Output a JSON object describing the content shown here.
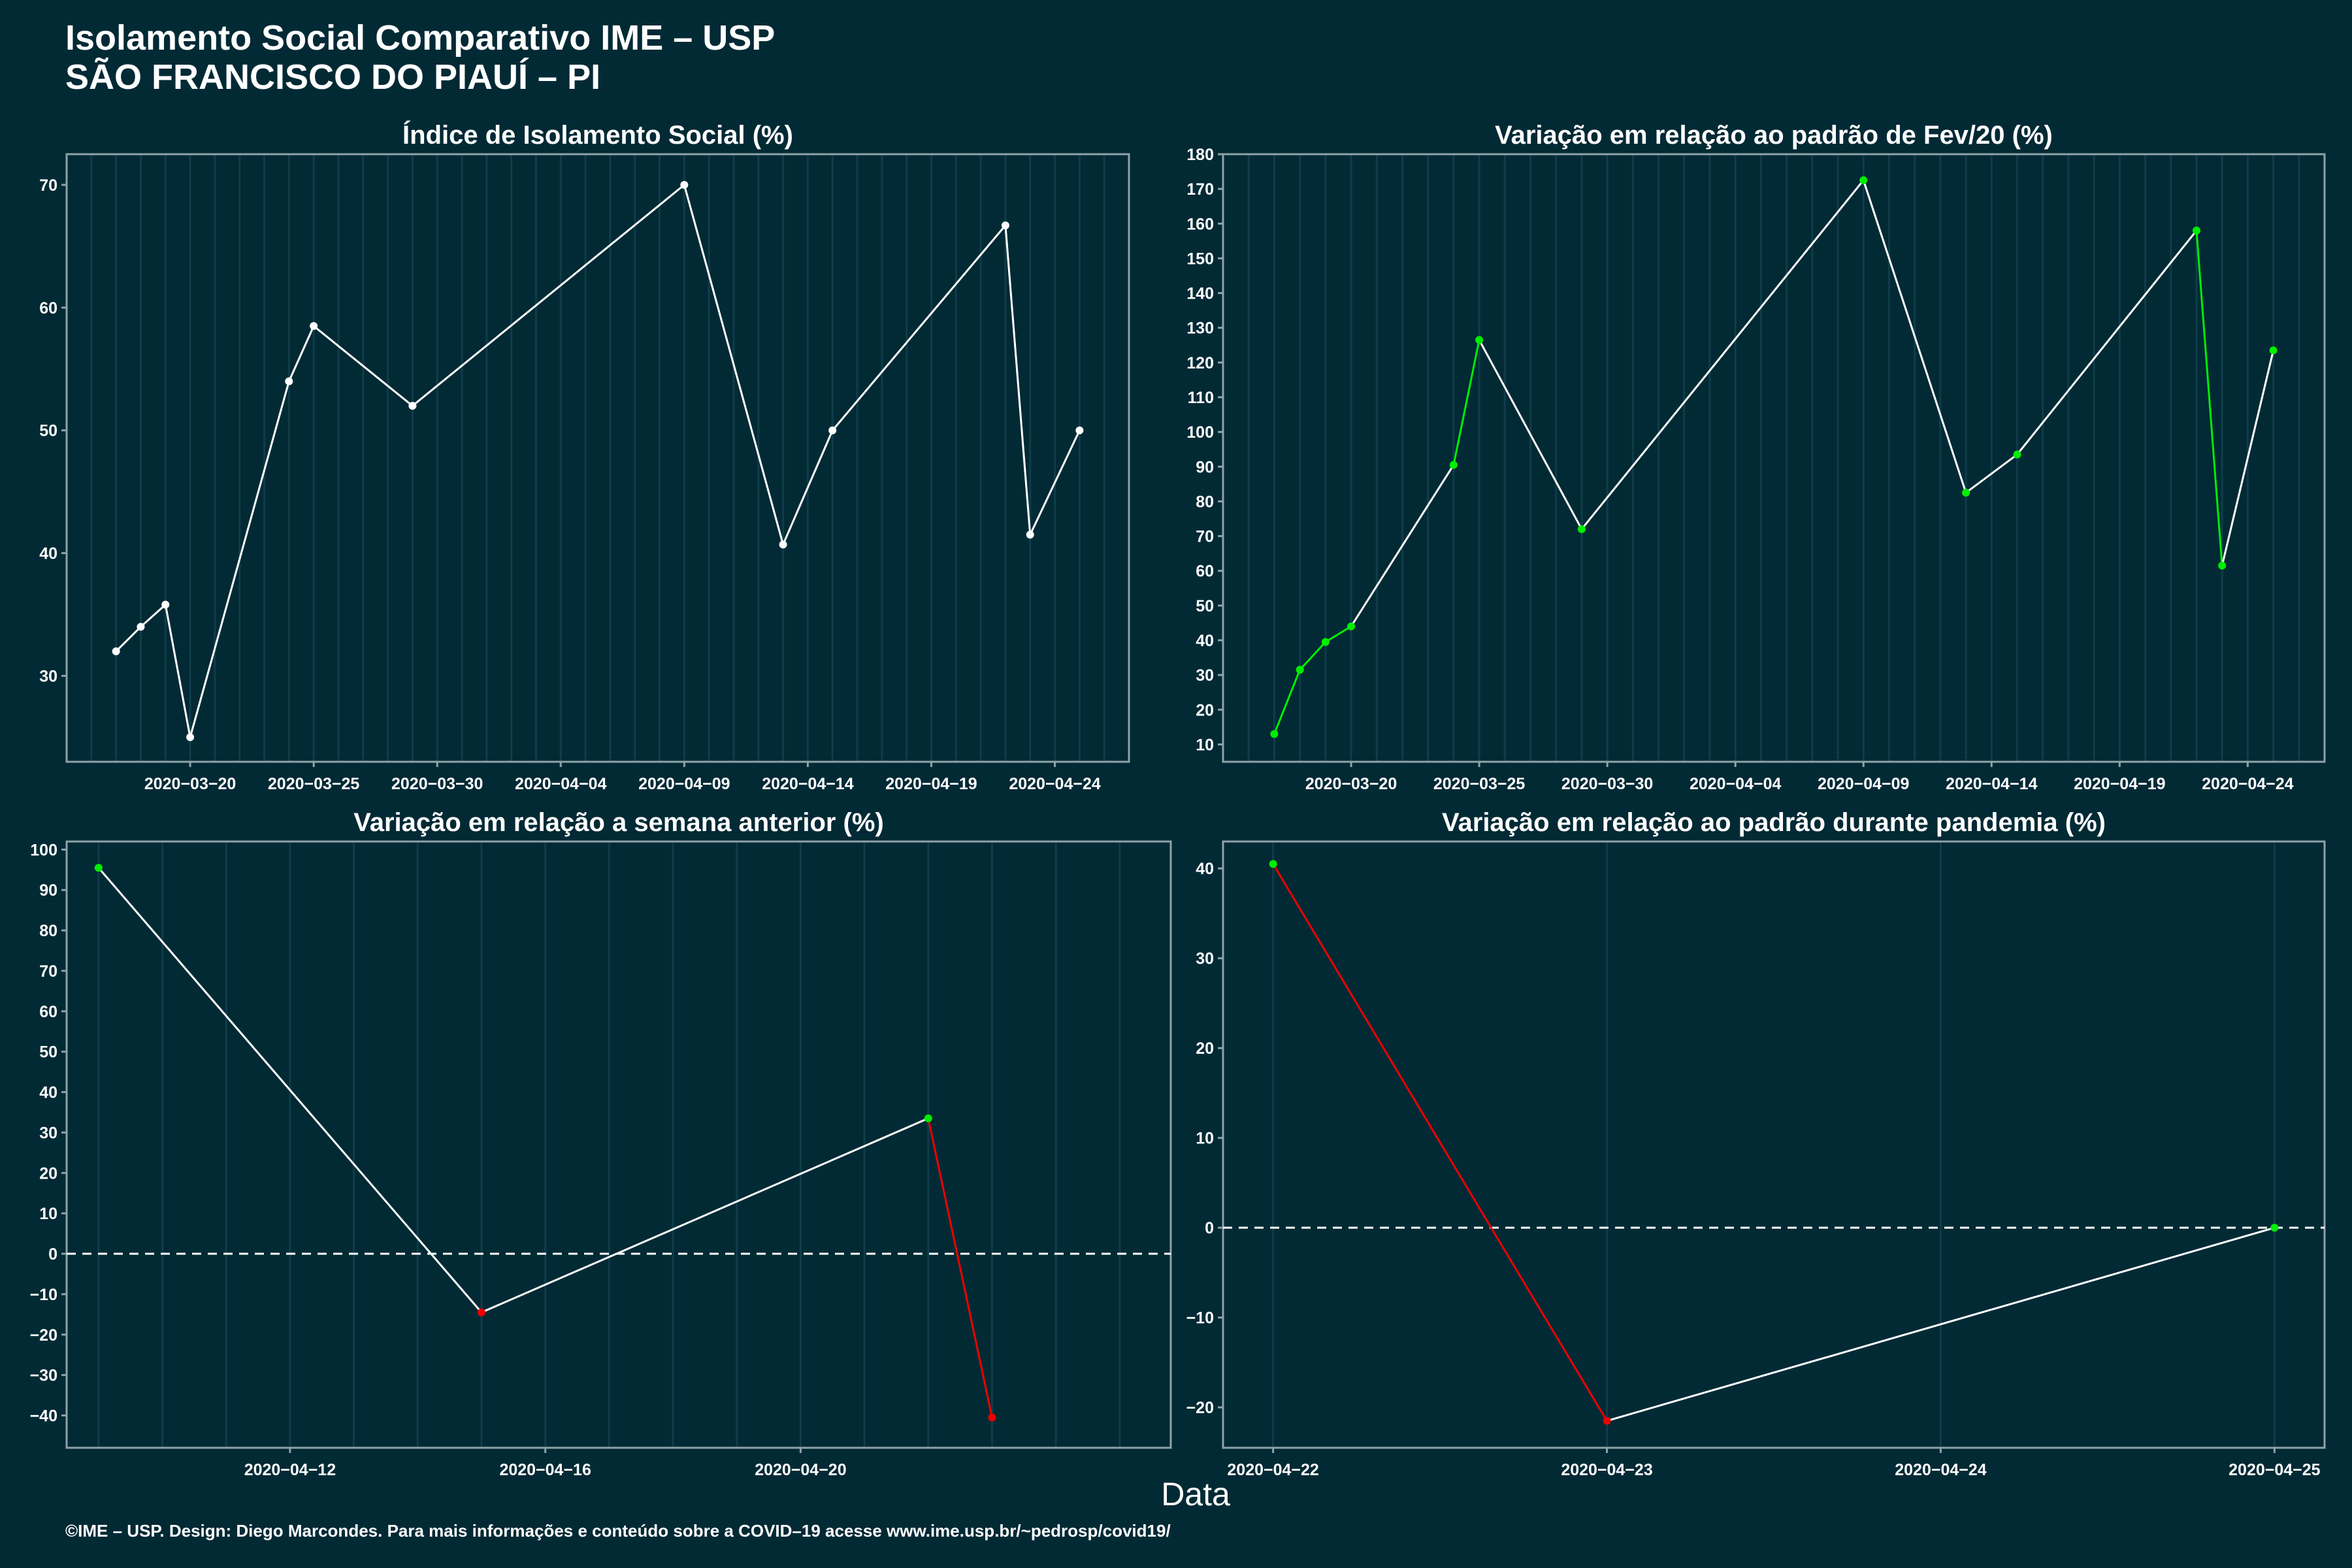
{
  "header": {
    "title_line1": "Isolamento Social Comparativo IME – USP",
    "title_line2": "SÃO FRANCISCO DO PIAUÍ – PI"
  },
  "xaxis_title": "Data",
  "footer": "©IME – USP. Design: Diego Marcondes. Para mais informações e conteúdo sobre a COVID–19 acesse www.ime.usp.br/~pedrosp/covid19/",
  "colors": {
    "background": "#022a35",
    "line": "#ffffff",
    "increase": "#00ee00",
    "decrease": "#ee0000",
    "panel_border": "#8fa3a8",
    "grid": "#0e3d49"
  },
  "chart_data": [
    {
      "type": "line",
      "title": "Índice de Isolamento Social (%)",
      "xlim": [
        "2020-03-15",
        "2020-04-27"
      ],
      "ylim": [
        23,
        72.5
      ],
      "x_ticks": [
        "2020-03-20",
        "2020-03-25",
        "2020-03-30",
        "2020-04-04",
        "2020-04-09",
        "2020-04-14",
        "2020-04-19",
        "2020-04-24"
      ],
      "y_ticks": [
        30,
        40,
        50,
        60,
        70
      ],
      "points": [
        {
          "x": "2020-03-17",
          "y": 32.0,
          "c": "white"
        },
        {
          "x": "2020-03-18",
          "y": 34.0,
          "c": "white"
        },
        {
          "x": "2020-03-19",
          "y": 35.8,
          "c": "white"
        },
        {
          "x": "2020-03-20",
          "y": 25.0,
          "c": "white"
        },
        {
          "x": "2020-03-24",
          "y": 54.0,
          "c": "white"
        },
        {
          "x": "2020-03-25",
          "y": 58.5,
          "c": "white"
        },
        {
          "x": "2020-03-29",
          "y": 52.0,
          "c": "white"
        },
        {
          "x": "2020-04-09",
          "y": 70.0,
          "c": "white"
        },
        {
          "x": "2020-04-13",
          "y": 40.7,
          "c": "white"
        },
        {
          "x": "2020-04-15",
          "y": 50.0,
          "c": "white"
        },
        {
          "x": "2020-04-22",
          "y": 66.7,
          "c": "white"
        },
        {
          "x": "2020-04-23",
          "y": 41.5,
          "c": "white"
        },
        {
          "x": "2020-04-25",
          "y": 50.0,
          "c": "white"
        }
      ]
    },
    {
      "type": "line",
      "title": "Variação em relação ao padrão de Fev/20 (%)",
      "xlim": [
        "2020-03-15",
        "2020-04-27"
      ],
      "ylim": [
        5,
        180
      ],
      "x_ticks": [
        "2020-03-20",
        "2020-03-25",
        "2020-03-30",
        "2020-04-04",
        "2020-04-09",
        "2020-04-14",
        "2020-04-19",
        "2020-04-24"
      ],
      "y_ticks": [
        10,
        20,
        30,
        40,
        50,
        60,
        70,
        80,
        90,
        100,
        110,
        120,
        130,
        140,
        150,
        160,
        170,
        180
      ],
      "points": [
        {
          "x": "2020-03-17",
          "y": 13.0,
          "c": "green"
        },
        {
          "x": "2020-03-18",
          "y": 31.5,
          "c": "green"
        },
        {
          "x": "2020-03-19",
          "y": 39.5,
          "c": "green"
        },
        {
          "x": "2020-03-20",
          "y": 44.0,
          "c": "green"
        },
        {
          "x": "2020-03-24",
          "y": 90.5,
          "c": "green"
        },
        {
          "x": "2020-03-25",
          "y": 126.5,
          "c": "green"
        },
        {
          "x": "2020-03-29",
          "y": 72.0,
          "c": "green"
        },
        {
          "x": "2020-04-09",
          "y": 172.5,
          "c": "green"
        },
        {
          "x": "2020-04-13",
          "y": 82.5,
          "c": "green"
        },
        {
          "x": "2020-04-15",
          "y": 93.5,
          "c": "green"
        },
        {
          "x": "2020-04-22",
          "y": 158.0,
          "c": "green"
        },
        {
          "x": "2020-04-23",
          "y": 61.5,
          "c": "green"
        },
        {
          "x": "2020-04-25",
          "y": 123.5,
          "c": "green"
        }
      ],
      "segments": [
        "green",
        "green",
        "green",
        "white",
        "green",
        "white",
        "white",
        "white",
        "white",
        "white",
        "green",
        "white"
      ]
    },
    {
      "type": "line",
      "title": "Variação em relação a semana anterior (%)",
      "xlim": [
        "2020-04-08.5",
        "2020-04-25.8"
      ],
      "ylim": [
        -48,
        102
      ],
      "x_ticks": [
        "2020-04-12",
        "2020-04-16",
        "2020-04-20"
      ],
      "y_ticks": [
        -40,
        -30,
        -20,
        -10,
        0,
        10,
        20,
        30,
        40,
        50,
        60,
        70,
        80,
        90,
        100
      ],
      "reference_line": 0,
      "points": [
        {
          "x": "2020-04-09",
          "y": 95.5,
          "c": "green"
        },
        {
          "x": "2020-04-15",
          "y": -14.5,
          "c": "red"
        },
        {
          "x": "2020-04-22",
          "y": 33.5,
          "c": "green"
        },
        {
          "x": "2020-04-23",
          "y": -40.5,
          "c": "red"
        }
      ],
      "segments": [
        "white",
        "white",
        "red"
      ]
    },
    {
      "type": "line",
      "title": "Variação em relação ao padrão durante pandemia (%)",
      "xlim": [
        "2020-04-21.85",
        "2020-04-25.15"
      ],
      "ylim": [
        -24.5,
        43
      ],
      "x_ticks": [
        "2020-04-22",
        "2020-04-23",
        "2020-04-24",
        "2020-04-25"
      ],
      "y_ticks": [
        -20,
        -10,
        0,
        10,
        20,
        30,
        40
      ],
      "reference_line": 0,
      "points": [
        {
          "x": "2020-04-22",
          "y": 40.5,
          "c": "green"
        },
        {
          "x": "2020-04-23",
          "y": -21.5,
          "c": "red"
        },
        {
          "x": "2020-04-25",
          "y": 0.0,
          "c": "green"
        }
      ],
      "segments": [
        "red",
        "white"
      ]
    }
  ]
}
